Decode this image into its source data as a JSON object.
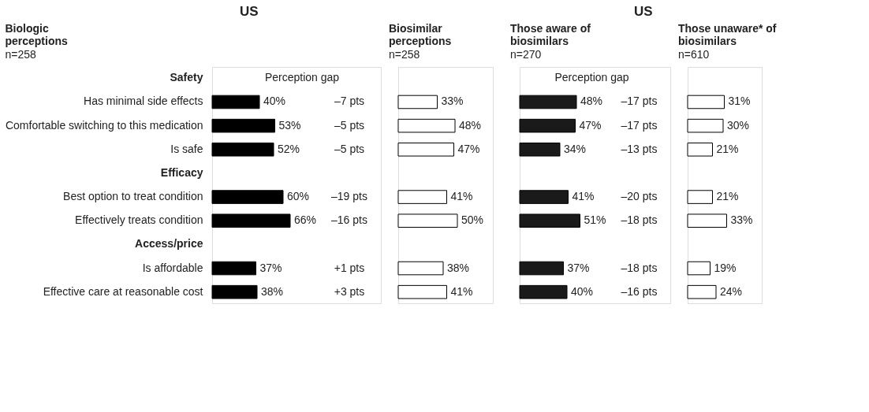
{
  "chart_data": [
    {
      "type": "bar",
      "orientation": "horizontal",
      "title": "Biologic perceptions",
      "subtitle": "n=258",
      "tick_labels": "y",
      "color": "#000000",
      "categories": [
        "Safety",
        "Has minimal side effects",
        "Comfortable switching to this medication",
        "Is safe",
        "Efficacy",
        "Best option to treat condition",
        "Effectively treats condition",
        "Access/price",
        "Is affordable",
        "Effective care at reasonable cost"
      ],
      "values": [
        null,
        40,
        53,
        52,
        null,
        60,
        66,
        null,
        37,
        38
      ],
      "value_labels": [
        null,
        "40%",
        "53%",
        "52%",
        null,
        "60%",
        "66%",
        null,
        "37%",
        "38%"
      ],
      "annotations": [
        "US",
        "Perception gap",
        "–7 pts",
        "–5 pts",
        "–5 pts",
        "–19 pts",
        "–16 pts",
        "+1 pts",
        "+3 pts"
      ]
    },
    {
      "type": "bar",
      "orientation": "horizontal",
      "title": "Biosimilar perceptions",
      "subtitle": "n=258",
      "color": "#ffffff",
      "categories": [
        null,
        null,
        null,
        null,
        null,
        null,
        null,
        null,
        null,
        null
      ],
      "values": [
        null,
        33,
        48,
        47,
        null,
        41,
        50,
        null,
        38,
        41
      ],
      "value_labels": [
        null,
        "33%",
        "48%",
        "47%",
        null,
        "41%",
        "50%",
        null,
        "38%",
        "41%"
      ]
    },
    {
      "type": "bar",
      "orientation": "horizontal",
      "title": "Those aware of biosimilars",
      "subtitle": "n=270",
      "color": "#1a1a1a",
      "categories": [
        null,
        null,
        null,
        null,
        null,
        null,
        null,
        null,
        null,
        null
      ],
      "values": [
        null,
        48,
        47,
        34,
        null,
        41,
        51,
        null,
        37,
        40
      ],
      "value_labels": [
        null,
        "48%",
        "47%",
        "34%",
        null,
        "41%",
        "51%",
        null,
        "37%",
        "40%"
      ],
      "annotations": [
        "US",
        "Perception gap",
        "–17 pts",
        "–17 pts",
        "–13 pts",
        "–20 pts",
        "–18 pts",
        "–18 pts",
        "–16 pts"
      ]
    },
    {
      "type": "bar",
      "orientation": "horizontal",
      "title": "Those unaware* of biosimilars",
      "subtitle": "n=610",
      "color": "#ffffff",
      "categories": [
        null,
        null,
        null,
        null,
        null,
        null,
        null,
        null,
        null,
        null
      ],
      "values": [
        null,
        31,
        30,
        21,
        null,
        21,
        33,
        null,
        19,
        24
      ],
      "value_labels": [
        null,
        "31%",
        "30%",
        "21%",
        null,
        "21%",
        "33%",
        null,
        "19%",
        "24%"
      ]
    }
  ]
}
